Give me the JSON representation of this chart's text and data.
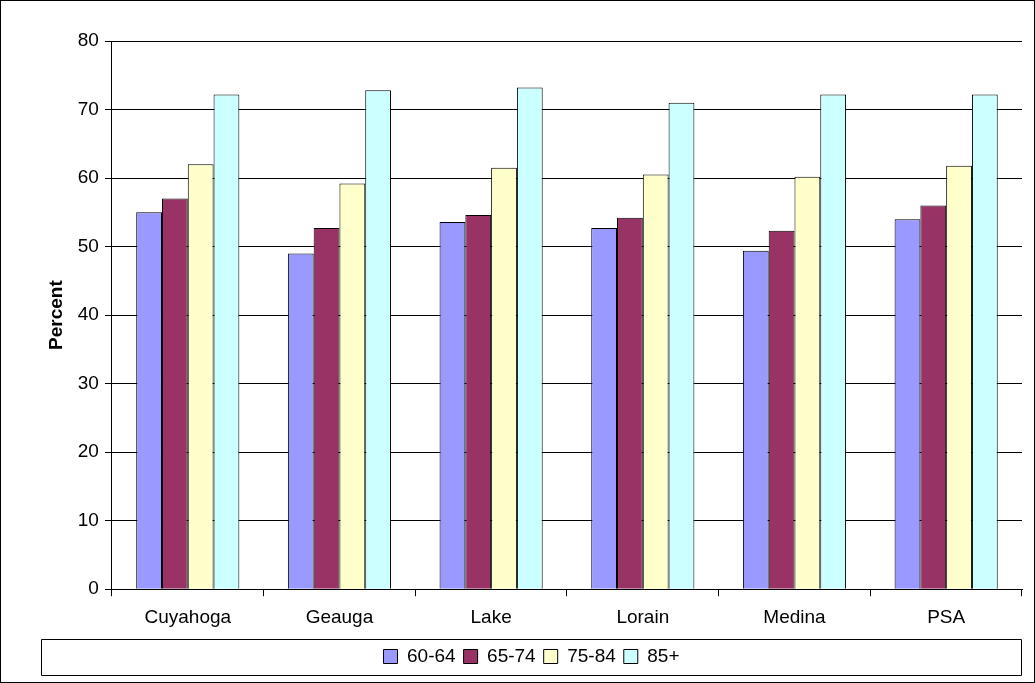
{
  "chart_data": {
    "type": "bar",
    "ylabel": "Percent",
    "categories": [
      "Cuyahoga",
      "Geauga",
      "Lake",
      "Lorain",
      "Medina",
      "PSA"
    ],
    "series": [
      {
        "name": "60-64",
        "color": "#9999ff",
        "values": [
          55,
          49,
          53.6,
          52.7,
          49.4,
          54
        ]
      },
      {
        "name": "65-74",
        "color": "#993366",
        "values": [
          57,
          52.7,
          54.6,
          54.2,
          52.3,
          56
        ]
      },
      {
        "name": "75-84",
        "color": "#ffffcc",
        "values": [
          62,
          59.2,
          61.5,
          60.5,
          60.2,
          61.8
        ]
      },
      {
        "name": "85+",
        "color": "#ccffff",
        "values": [
          72.2,
          72.8,
          73.2,
          71,
          72.2,
          72.2
        ]
      }
    ],
    "ylim": [
      0,
      80
    ],
    "yticks": [
      0,
      10,
      20,
      30,
      40,
      50,
      60,
      70,
      80
    ],
    "grid": "y",
    "legend": "bottom"
  }
}
